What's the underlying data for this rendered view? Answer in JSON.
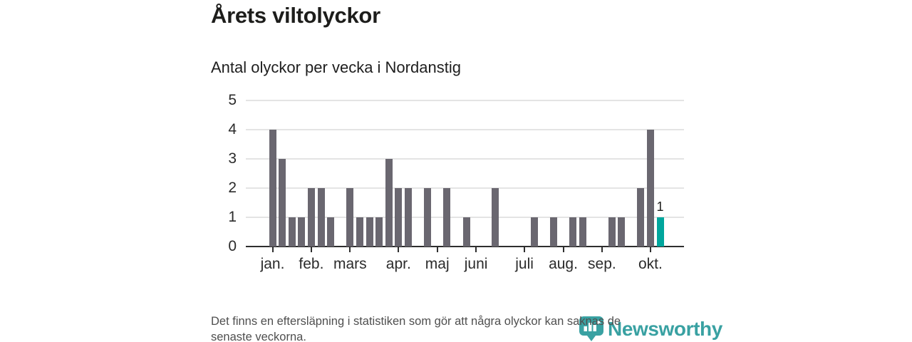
{
  "title": "Årets viltolyckor",
  "subtitle": "Antal olyckor per vecka i Nordanstig",
  "footer": {
    "lines": [
      "Det finns en eftersläpning i statistiken som gör att några olyckor kan saknas de",
      "senaste veckorna."
    ]
  },
  "logo": {
    "name": "Newsworthy"
  },
  "colors": {
    "bar": "#6a6770",
    "highlight": "#00a69d",
    "gridline": "#e4e4e4",
    "axis": "#2e2e2e",
    "logo_teal": "#2f9c9e"
  },
  "chart_data": {
    "type": "bar",
    "title": "Årets viltolyckor",
    "subtitle": "Antal olyckor per vecka i Nordanstig",
    "x_unit": "week",
    "ylabel": "",
    "xlabel": "",
    "ylim": [
      0,
      5
    ],
    "yticks": [
      0,
      1,
      2,
      3,
      4,
      5
    ],
    "grid": true,
    "weeks": [
      1,
      2,
      3,
      4,
      5,
      6,
      7,
      8,
      9,
      10,
      11,
      12,
      13,
      14,
      15,
      16,
      17,
      18,
      19,
      20,
      21,
      22,
      23,
      24,
      25,
      26,
      27,
      28,
      29,
      30,
      31,
      32,
      33,
      34,
      35,
      36,
      37,
      38,
      39,
      40,
      41
    ],
    "values": [
      4,
      3,
      1,
      1,
      2,
      2,
      1,
      0,
      2,
      1,
      1,
      1,
      3,
      2,
      2,
      0,
      2,
      0,
      2,
      0,
      1,
      0,
      0,
      2,
      0,
      0,
      0,
      1,
      0,
      1,
      0,
      1,
      1,
      0,
      0,
      1,
      1,
      0,
      2,
      4,
      1
    ],
    "highlight_last": true,
    "last_bar_label": "1",
    "month_ticks": [
      {
        "label": "jan.",
        "week": 1
      },
      {
        "label": "feb.",
        "week": 5
      },
      {
        "label": "mars",
        "week": 9
      },
      {
        "label": "apr.",
        "week": 14
      },
      {
        "label": "maj",
        "week": 18
      },
      {
        "label": "juni",
        "week": 22
      },
      {
        "label": "juli",
        "week": 27
      },
      {
        "label": "aug.",
        "week": 31
      },
      {
        "label": "sep.",
        "week": 35
      },
      {
        "label": "okt.",
        "week": 40
      }
    ]
  }
}
